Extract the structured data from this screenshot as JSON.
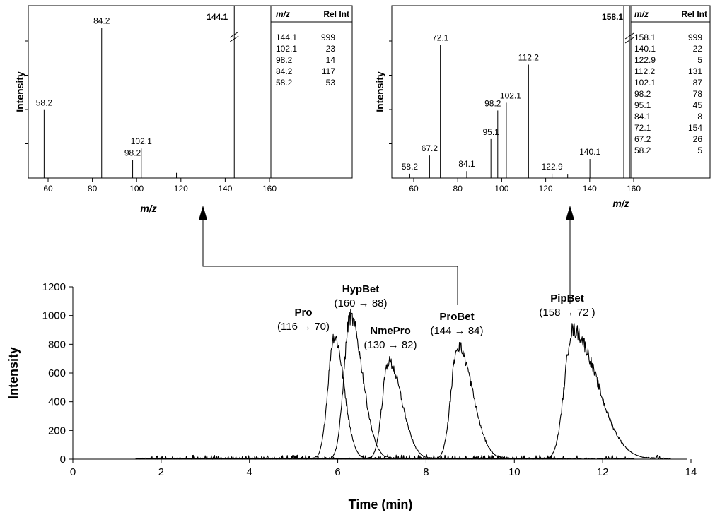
{
  "chart_data": [
    {
      "type": "bar",
      "name": "spectrum-probet",
      "xlabel": "m/z",
      "ylabel": "Intensity",
      "xlim": [
        50,
        160
      ],
      "xticks": [
        60,
        80,
        100,
        120,
        140,
        160
      ],
      "precursor": {
        "mz": 144.1,
        "label": "144.1",
        "height": 999
      },
      "peaks": [
        {
          "mz": 58.2,
          "value": 53,
          "label": "58.2"
        },
        {
          "mz": 84.2,
          "value": 117,
          "label": "84.2"
        },
        {
          "mz": 98.2,
          "value": 14,
          "label": "98.2"
        },
        {
          "mz": 102.1,
          "value": 23,
          "label": "102.1"
        },
        {
          "mz": 118.0,
          "value": 4,
          "label": ""
        }
      ],
      "ymax": 120,
      "table": {
        "headers": [
          "m/z",
          "Rel Int"
        ],
        "rows": [
          [
            "144.1",
            "999"
          ],
          [
            "102.1",
            "23"
          ],
          [
            "98.2",
            "14"
          ],
          [
            "84.2",
            "117"
          ],
          [
            "58.2",
            "53"
          ]
        ]
      }
    },
    {
      "type": "bar",
      "name": "spectrum-pipbet",
      "xlabel": "m/z",
      "ylabel": "Intensity",
      "xlim": [
        50,
        160
      ],
      "xticks": [
        60,
        80,
        100,
        120,
        140,
        160
      ],
      "precursor": {
        "mz": 158.1,
        "label": "158.1",
        "height": 999
      },
      "peaks": [
        {
          "mz": 58.2,
          "value": 5,
          "label": "58.2"
        },
        {
          "mz": 67.2,
          "value": 26,
          "label": "67.2"
        },
        {
          "mz": 72.1,
          "value": 154,
          "label": "72.1"
        },
        {
          "mz": 84.1,
          "value": 8,
          "label": "84.1"
        },
        {
          "mz": 95.1,
          "value": 45,
          "label": "95.1"
        },
        {
          "mz": 98.2,
          "value": 78,
          "label": "98.2"
        },
        {
          "mz": 102.1,
          "value": 87,
          "label": "102.1"
        },
        {
          "mz": 112.2,
          "value": 131,
          "label": "112.2"
        },
        {
          "mz": 122.9,
          "value": 5,
          "label": "122.9"
        },
        {
          "mz": 130.0,
          "value": 4,
          "label": ""
        },
        {
          "mz": 140.1,
          "value": 22,
          "label": "140.1"
        }
      ],
      "ymax": 160,
      "table": {
        "headers": [
          "m/z",
          "Rel Int"
        ],
        "rows": [
          [
            "158.1",
            "999"
          ],
          [
            "140.1",
            "22"
          ],
          [
            "122.9",
            "5"
          ],
          [
            "112.2",
            "131"
          ],
          [
            "102.1",
            "87"
          ],
          [
            "98.2",
            "78"
          ],
          [
            "95.1",
            "45"
          ],
          [
            "84.1",
            "8"
          ],
          [
            "72.1",
            "154"
          ],
          [
            "67.2",
            "26"
          ],
          [
            "58.2",
            "5"
          ]
        ]
      }
    },
    {
      "type": "line",
      "name": "chromatogram",
      "xlabel": "Time (min)",
      "ylabel": "Intensity",
      "xlim": [
        0,
        14
      ],
      "ylim": [
        0,
        1200
      ],
      "xticks": [
        0,
        2,
        4,
        6,
        8,
        10,
        12,
        14
      ],
      "yticks": [
        0,
        200,
        400,
        600,
        800,
        1000,
        1200
      ],
      "baseline_noise": 10,
      "series": [
        {
          "name": "Pro",
          "transition": "(116 → 70)",
          "center": 5.92,
          "height": 860,
          "sigma_left": 0.14,
          "sigma_right": 0.22
        },
        {
          "name": "HypBet",
          "transition": "(160 → 88)",
          "center": 6.28,
          "height": 990,
          "sigma_left": 0.14,
          "sigma_right": 0.28
        },
        {
          "name": "NmePro",
          "transition": "(130 → 82)",
          "center": 7.15,
          "height": 680,
          "sigma_left": 0.14,
          "sigma_right": 0.3
        },
        {
          "name": "ProBet",
          "transition": "(144 → 84)",
          "center": 8.72,
          "height": 790,
          "sigma_left": 0.15,
          "sigma_right": 0.33
        },
        {
          "name": "PipBet",
          "transition": "(158 → 72 )",
          "center": 11.32,
          "height": 900,
          "sigma_left": 0.18,
          "sigma_right": 0.55
        }
      ]
    }
  ]
}
